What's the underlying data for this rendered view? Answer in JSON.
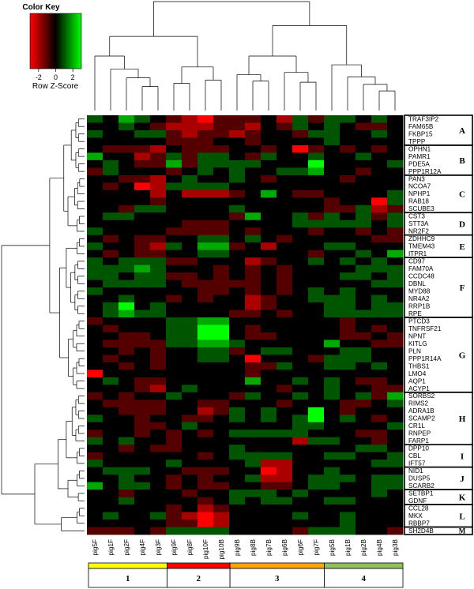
{
  "chart_data": {
    "type": "heatmap",
    "color_key": {
      "title": "Color Key",
      "xlabel": "Row Z-Score",
      "ticks": [
        "-2",
        "0",
        "2"
      ],
      "range": [
        -3,
        3
      ],
      "colors": {
        "low": "#ff0000",
        "mid": "#000000",
        "high": "#00ff00"
      }
    },
    "columns": [
      "pig5F",
      "pig1F",
      "pig2F",
      "pig4F",
      "pig3F",
      "pig9F",
      "pig8F",
      "pig10F",
      "pig10B",
      "pig9B",
      "pig8B",
      "pig7B",
      "pig6B",
      "pig6F",
      "pig7F",
      "pig5B",
      "pig1B",
      "pig2B",
      "pig4B",
      "pig3B"
    ],
    "rows": [
      "TRAF3IP2",
      "FAM65B",
      "FKBP15",
      "TPPP",
      "OPHN1",
      "PAMR1",
      "PDE5A",
      "PPP1R12A",
      "PAN3",
      "NCOA7",
      "NPHP1",
      "RAB18",
      "SCUBE3",
      "CST3",
      "STT3A",
      "NR2F2",
      "ZDHHC9",
      "TMEM43",
      "ITPR1",
      "CD97",
      "FAM70A",
      "CCDC48",
      "DBNL",
      "MYD88",
      "NR4A2",
      "RRP1B",
      "RPE",
      "PTCD3",
      "TNFRSF21",
      "NPNT",
      "KITLG",
      "PLN",
      "PPP1R14A",
      "THBS1",
      "LMO4",
      "AQP1",
      "ACYP1",
      "SORBS2",
      "RIMS2",
      "ADRA1B",
      "SCAMP2",
      "CR1L",
      "RNPEP",
      "FARP1",
      "DPP10",
      "CBL",
      "IFT57",
      "NID1",
      "DUSP5",
      "SCARB2",
      "SETBP1",
      "GDNF",
      "CCL28",
      "MKX",
      "RBBP7",
      "SH2D4B"
    ],
    "row_groups": [
      {
        "label": "A",
        "start": 0,
        "end": 3
      },
      {
        "label": "B",
        "start": 4,
        "end": 7
      },
      {
        "label": "C",
        "start": 8,
        "end": 12
      },
      {
        "label": "D",
        "start": 13,
        "end": 15
      },
      {
        "label": "E",
        "start": 16,
        "end": 18
      },
      {
        "label": "F",
        "start": 19,
        "end": 26
      },
      {
        "label": "G",
        "start": 27,
        "end": 36
      },
      {
        "label": "H",
        "start": 37,
        "end": 43
      },
      {
        "label": "I",
        "start": 44,
        "end": 46
      },
      {
        "label": "J",
        "start": 47,
        "end": 49
      },
      {
        "label": "K",
        "start": 50,
        "end": 51
      },
      {
        "label": "L",
        "start": 52,
        "end": 54
      },
      {
        "label": "M",
        "start": 55,
        "end": 55
      }
    ],
    "column_groups": [
      {
        "label": "1",
        "start": 0,
        "end": 4,
        "color": "#ffff00"
      },
      {
        "label": "2",
        "start": 5,
        "end": 8,
        "color": "#ff0000"
      },
      {
        "label": "3",
        "start": 9,
        "end": 14,
        "color": "#ffa500"
      },
      {
        "label": "4",
        "start": 15,
        "end": 19,
        "color": "#90c060"
      }
    ],
    "values": [
      [
        1,
        0,
        2,
        1,
        0,
        -1,
        -2,
        -3,
        -1,
        -1,
        -1,
        0,
        -2,
        1,
        -1,
        1,
        1,
        0,
        1,
        0
      ],
      [
        0,
        0,
        1,
        0,
        -1,
        -2,
        -2,
        -2,
        -1,
        -1,
        -2,
        0,
        -1,
        1,
        0,
        1,
        0,
        -1,
        -1,
        0
      ],
      [
        1,
        0,
        0,
        1,
        1,
        -1,
        -2,
        -1,
        -1,
        -2,
        -1,
        0,
        0,
        -1,
        1,
        1,
        0,
        0,
        1,
        0
      ],
      [
        0,
        0,
        0,
        0,
        0,
        -1,
        -1,
        -1,
        0,
        0,
        -1,
        0,
        0,
        0,
        0,
        1,
        0,
        0,
        0,
        0
      ],
      [
        0,
        -1,
        -1,
        -1,
        -2,
        0,
        -1,
        -1,
        -1,
        0,
        0,
        -1,
        0,
        -3,
        -1,
        0,
        -1,
        0,
        -1,
        0
      ],
      [
        2,
        0,
        0,
        -2,
        -1,
        1,
        -1,
        1,
        1,
        0,
        -1,
        1,
        0,
        0,
        1,
        0,
        0,
        1,
        0,
        0
      ],
      [
        0,
        1,
        0,
        -1,
        -1,
        2,
        -1,
        1,
        1,
        1,
        1,
        0,
        0,
        0,
        3,
        0,
        0,
        0,
        0,
        1
      ],
      [
        -1,
        1,
        0,
        0,
        0,
        -1,
        0,
        1,
        0,
        1,
        0,
        0,
        1,
        1,
        2,
        0,
        0,
        -1,
        0,
        0
      ],
      [
        0,
        0,
        -1,
        -1,
        -2,
        0,
        1,
        0,
        0,
        1,
        0,
        -1,
        0,
        0,
        0,
        0,
        -1,
        0,
        0,
        0
      ],
      [
        0,
        -1,
        0,
        -3,
        -2,
        1,
        1,
        1,
        1,
        0,
        0,
        0,
        0,
        0,
        0,
        0,
        0,
        0,
        0,
        0
      ],
      [
        0,
        0,
        0,
        0,
        -2,
        0,
        -2,
        -2,
        -2,
        -1,
        0,
        2,
        0,
        -1,
        -1,
        0,
        0,
        0,
        0,
        1
      ],
      [
        0,
        0,
        0,
        0,
        -1,
        0,
        0,
        0,
        0,
        0,
        0,
        0,
        0,
        0,
        0,
        -1,
        0,
        0,
        -3,
        1
      ],
      [
        0,
        0,
        -1,
        1,
        1,
        0,
        0,
        0,
        0,
        1,
        0,
        0,
        0,
        0,
        0,
        -1,
        -1,
        1,
        -2,
        -1
      ],
      [
        0,
        1,
        1,
        0,
        0,
        0,
        0,
        0,
        0,
        -1,
        2,
        0,
        0,
        1,
        -1,
        1,
        0,
        1,
        -1,
        1
      ],
      [
        0,
        0,
        0,
        0,
        0,
        0,
        -1,
        -1,
        -1,
        0,
        0,
        0,
        0,
        1,
        1,
        1,
        1,
        1,
        0,
        1
      ],
      [
        1,
        0,
        0,
        0,
        0,
        -1,
        -1,
        -1,
        -1,
        0,
        -1,
        0,
        0,
        0,
        -1,
        0,
        0,
        -1,
        0,
        -1
      ],
      [
        0,
        -1,
        0,
        -1,
        -1,
        0,
        0,
        1,
        1,
        0,
        1,
        0,
        -1,
        0,
        0,
        0,
        0,
        0,
        -1,
        -1
      ],
      [
        1,
        0,
        0,
        -1,
        -2,
        1,
        0,
        2,
        2,
        -1,
        0,
        -2,
        0,
        0,
        0,
        1,
        1,
        0,
        0,
        0
      ],
      [
        0,
        -1,
        0,
        -1,
        -1,
        0,
        0,
        1,
        1,
        0,
        0,
        0,
        0,
        0,
        -1,
        0,
        0,
        1,
        0,
        2
      ],
      [
        1,
        0,
        1,
        1,
        1,
        -1,
        -1,
        0,
        0,
        0,
        -2,
        -1,
        0,
        0,
        1,
        0,
        1,
        0,
        1,
        0
      ],
      [
        1,
        1,
        1,
        2,
        1,
        0,
        0,
        0,
        -1,
        0,
        -1,
        0,
        -1,
        0,
        0,
        0,
        0,
        1,
        1,
        1
      ],
      [
        1,
        1,
        0,
        1,
        1,
        -1,
        -1,
        0,
        -1,
        0,
        -1,
        0,
        -1,
        0,
        0,
        0,
        1,
        1,
        0,
        1
      ],
      [
        0,
        1,
        1,
        1,
        1,
        0,
        -1,
        -1,
        -1,
        -1,
        -1,
        0,
        -1,
        0,
        0,
        0,
        0,
        0,
        1,
        1
      ],
      [
        1,
        0,
        0,
        0,
        0,
        0,
        0,
        -1,
        -1,
        0,
        -1,
        0,
        -1,
        0,
        1,
        0,
        1,
        0,
        0,
        0
      ],
      [
        0,
        0,
        1,
        0,
        0,
        -1,
        0,
        -1,
        0,
        0,
        -2,
        -1,
        0,
        0,
        1,
        1,
        1,
        0,
        1,
        0
      ],
      [
        0,
        1,
        3,
        0,
        1,
        0,
        0,
        0,
        0,
        0,
        -2,
        -1,
        0,
        0,
        0,
        1,
        1,
        0,
        1,
        1
      ],
      [
        0,
        1,
        2,
        1,
        1,
        0,
        0,
        0,
        0,
        -1,
        -1,
        0,
        -1,
        0,
        0,
        1,
        1,
        1,
        1,
        1
      ],
      [
        -1,
        0,
        0,
        0,
        0,
        1,
        1,
        2,
        2,
        0,
        0,
        0,
        0,
        0,
        0,
        0,
        -1,
        0,
        0,
        0
      ],
      [
        0,
        -1,
        0,
        0,
        0,
        1,
        1,
        3,
        3,
        0,
        -1,
        0,
        0,
        0,
        0,
        0,
        -1,
        0,
        -1,
        0
      ],
      [
        0,
        0,
        -1,
        -1,
        0,
        1,
        1,
        3,
        3,
        0,
        -1,
        -1,
        0,
        0,
        0,
        0,
        -1,
        -1,
        0,
        -1
      ],
      [
        0,
        -1,
        -1,
        -1,
        -1,
        1,
        1,
        2,
        2,
        1,
        0,
        0,
        0,
        0,
        0,
        2,
        0,
        0,
        -1,
        -1
      ],
      [
        0,
        0,
        -1,
        0,
        -1,
        0,
        0,
        1,
        1,
        -1,
        0,
        1,
        1,
        0,
        0,
        0,
        1,
        1,
        0,
        0
      ],
      [
        0,
        -1,
        0,
        0,
        -1,
        0,
        0,
        1,
        1,
        0,
        -3,
        0,
        0,
        0,
        -1,
        1,
        1,
        1,
        0,
        0
      ],
      [
        0,
        0,
        -1,
        0,
        -1,
        0,
        0,
        0,
        0,
        0,
        -1,
        -1,
        1,
        0,
        0,
        1,
        1,
        0,
        1,
        0
      ],
      [
        -3,
        0,
        0,
        0,
        0,
        0,
        0,
        0,
        0,
        0,
        -1,
        0,
        0,
        0,
        0,
        0,
        0,
        0,
        0,
        0
      ],
      [
        0,
        1,
        0,
        -1,
        -1,
        0,
        0,
        0,
        0,
        0,
        2,
        0,
        0,
        1,
        0,
        1,
        0,
        -1,
        -1,
        0
      ],
      [
        0,
        0,
        0,
        -1,
        -2,
        0,
        1,
        0,
        0,
        0,
        0,
        0,
        -1,
        0,
        0,
        1,
        0,
        0,
        -1,
        -1
      ],
      [
        -1,
        0,
        -1,
        0,
        0,
        1,
        0,
        0,
        0,
        -1,
        1,
        0,
        0,
        1,
        0,
        1,
        0,
        1,
        -1,
        2
      ],
      [
        0,
        -1,
        -1,
        -1,
        -1,
        0,
        0,
        -1,
        -1,
        0,
        0,
        0,
        -1,
        0,
        0,
        0,
        -1,
        -1,
        0,
        1
      ],
      [
        0,
        0,
        -1,
        -1,
        -1,
        0,
        0,
        -2,
        -1,
        1,
        0,
        1,
        0,
        0,
        3,
        0,
        -1,
        0,
        0,
        0
      ],
      [
        1,
        0,
        0,
        -1,
        0,
        0,
        -1,
        -1,
        0,
        1,
        0,
        1,
        0,
        1,
        3,
        0,
        1,
        0,
        -1,
        0
      ],
      [
        0,
        0,
        0,
        -1,
        -1,
        0,
        1,
        0,
        0,
        0,
        0,
        0,
        0,
        1,
        1,
        0,
        0,
        0,
        0,
        1
      ],
      [
        -1,
        0,
        0,
        -1,
        0,
        -1,
        0,
        -1,
        0,
        1,
        1,
        1,
        1,
        1,
        0,
        0,
        0,
        -1,
        -1,
        0
      ],
      [
        1,
        0,
        1,
        0,
        0,
        -1,
        0,
        0,
        0,
        0,
        0,
        0,
        0,
        -2,
        1,
        1,
        0,
        0,
        -1,
        0
      ],
      [
        0,
        0,
        -1,
        0,
        -1,
        -1,
        0,
        0,
        0,
        1,
        0,
        0,
        0,
        0,
        0,
        0,
        0,
        1,
        1,
        0
      ],
      [
        -1,
        0,
        0,
        0,
        0,
        0,
        0,
        -1,
        0,
        1,
        1,
        1,
        1,
        0,
        0,
        1,
        1,
        0,
        0,
        1
      ],
      [
        1,
        0,
        0,
        0,
        0,
        1,
        0,
        0,
        0,
        0,
        1,
        -2,
        -2,
        0,
        0,
        0,
        0,
        0,
        1,
        1
      ],
      [
        0,
        1,
        1,
        1,
        0,
        0,
        -1,
        -1,
        -1,
        0,
        0,
        -3,
        -2,
        0,
        0,
        1,
        0,
        0,
        0,
        0
      ],
      [
        0,
        0,
        1,
        0,
        0,
        -1,
        0,
        -1,
        0,
        0,
        1,
        -2,
        -2,
        0,
        1,
        1,
        1,
        0,
        1,
        1
      ],
      [
        2,
        0,
        1,
        1,
        0,
        -1,
        0,
        -1,
        -1,
        0,
        0,
        -1,
        -1,
        0,
        1,
        1,
        0,
        0,
        1,
        1
      ],
      [
        0,
        0,
        -1,
        0,
        0,
        0,
        -1,
        0,
        0,
        1,
        1,
        1,
        0,
        1,
        0,
        0,
        0,
        0,
        1,
        0
      ],
      [
        0,
        0,
        1,
        0,
        0,
        0,
        0,
        -1,
        0,
        1,
        0,
        1,
        1,
        0,
        0,
        1,
        1,
        0,
        0,
        0
      ],
      [
        0,
        0,
        0,
        0,
        0,
        -1,
        0,
        -2,
        -1,
        0,
        0,
        0,
        0,
        0,
        0,
        0,
        0,
        0,
        0,
        0
      ],
      [
        0,
        1,
        0,
        0,
        1,
        -1,
        -2,
        -3,
        -2,
        0,
        0,
        0,
        0,
        1,
        0,
        0,
        1,
        0,
        0,
        0
      ],
      [
        0,
        0,
        0,
        0,
        0,
        -1,
        -1,
        -3,
        -2,
        0,
        0,
        0,
        0,
        0,
        0,
        0,
        1,
        0,
        0,
        0
      ],
      [
        -1,
        -1,
        -1,
        0,
        -1,
        1,
        1,
        1,
        1,
        0,
        0,
        0,
        0,
        -1,
        1,
        1,
        1,
        0,
        0,
        -1
      ]
    ]
  }
}
